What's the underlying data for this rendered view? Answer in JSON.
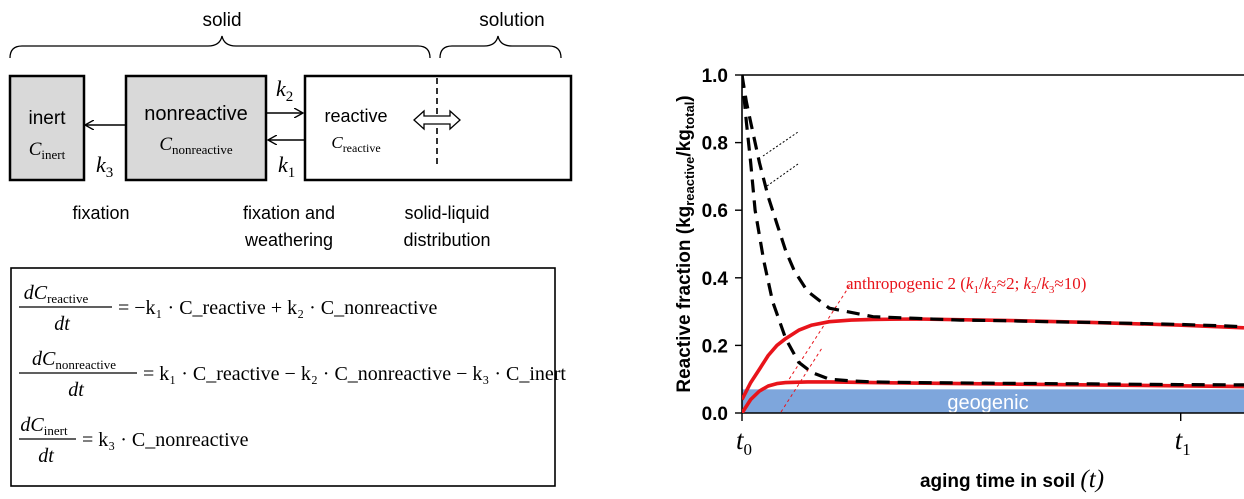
{
  "schematic": {
    "phase_solid": "solid",
    "phase_solution": "solution",
    "boxes": {
      "inert": {
        "label": "inert",
        "sym": "C",
        "sub": "inert",
        "fill": "#d9d9d9"
      },
      "nonreactive": {
        "label": "nonreactive",
        "sym": "C",
        "sub": "nonreactive",
        "fill": "#d9d9d9"
      },
      "reactive": {
        "label": "reactive",
        "sym": "C",
        "sub": "reactive",
        "fill": "#ffffff"
      }
    },
    "rates": {
      "k1": {
        "sym": "k",
        "sub": "1"
      },
      "k2": {
        "sym": "k",
        "sub": "2"
      },
      "k3": {
        "sym": "k",
        "sub": "3"
      }
    },
    "process_fixation": "fixation",
    "process_weathering": [
      "fixation and",
      "weathering"
    ],
    "process_distribution": [
      "solid-liquid",
      "distribution"
    ]
  },
  "equations": {
    "eq1": {
      "num": "dC",
      "num_sub": "reactive",
      "den": "dt",
      "rhs": "= −k₁ · C_reactive + k₂ · C_nonreactive"
    },
    "eq2": {
      "num": "dC",
      "num_sub": "nonreactive",
      "den": "dt",
      "rhs": "= k₁ · C_reactive − k₂ · C_nonreactive − k₃ · C_inert"
    },
    "eq3": {
      "num": "dC",
      "num_sub": "inert",
      "den": "dt",
      "rhs": "= k₃ · C_nonreactive"
    }
  },
  "chart_data": {
    "type": "line",
    "ylabel": "Reactive fraction (kg_reactive/kg_total)",
    "xlabel": "aging time in soil (t)",
    "ylim": [
      0,
      1.0
    ],
    "yticks": [
      "0.0",
      "0.2",
      "0.4",
      "0.6",
      "0.8",
      "1.0"
    ],
    "xticks": [
      "t0",
      "t1"
    ],
    "geogenic_band": {
      "label": "geogenic",
      "ymax": 0.07,
      "color": "#7ea6dc"
    },
    "annotation": "anthropogenic 2 (k1/k2≈2; k2/k3≈10)",
    "colors": {
      "model": "#e8141b",
      "fit": "#000000"
    },
    "series": [
      {
        "style": "dashed",
        "color": "#000000",
        "x": [
          0,
          0.05,
          0.1,
          0.2,
          0.3,
          0.4,
          0.6,
          0.8,
          1.0,
          1.2,
          1.5,
          2,
          3,
          4,
          5,
          6,
          7,
          8,
          9,
          10,
          11,
          11.5
        ],
        "y": [
          1.0,
          0.96,
          0.92,
          0.86,
          0.8,
          0.74,
          0.64,
          0.56,
          0.48,
          0.42,
          0.36,
          0.31,
          0.285,
          0.28,
          0.275,
          0.273,
          0.27,
          0.268,
          0.265,
          0.262,
          0.258,
          0.255
        ]
      },
      {
        "style": "dashed",
        "color": "#000000",
        "x": [
          0,
          0.05,
          0.1,
          0.2,
          0.3,
          0.5,
          0.7,
          1.0,
          1.3,
          1.6,
          2,
          2.5,
          3,
          4,
          6,
          8,
          10,
          11.5
        ],
        "y": [
          1.0,
          0.93,
          0.86,
          0.74,
          0.6,
          0.45,
          0.33,
          0.22,
          0.15,
          0.12,
          0.1,
          0.095,
          0.092,
          0.09,
          0.088,
          0.086,
          0.084,
          0.083
        ]
      },
      {
        "style": "solid",
        "color": "#e8141b",
        "x": [
          0,
          0.2,
          0.4,
          0.6,
          0.8,
          1.0,
          1.3,
          1.6,
          2,
          2.5,
          3,
          4,
          6,
          8,
          10,
          11.5
        ],
        "y": [
          0.04,
          0.09,
          0.13,
          0.17,
          0.2,
          0.22,
          0.245,
          0.26,
          0.27,
          0.275,
          0.277,
          0.278,
          0.274,
          0.268,
          0.26,
          0.252
        ]
      },
      {
        "style": "solid",
        "color": "#e8141b",
        "x": [
          0,
          0.2,
          0.4,
          0.6,
          0.8,
          1.0,
          1.5,
          2,
          3,
          5,
          8,
          11.5
        ],
        "y": [
          0.0,
          0.04,
          0.065,
          0.08,
          0.087,
          0.09,
          0.092,
          0.092,
          0.09,
          0.087,
          0.083,
          0.078
        ]
      }
    ]
  }
}
